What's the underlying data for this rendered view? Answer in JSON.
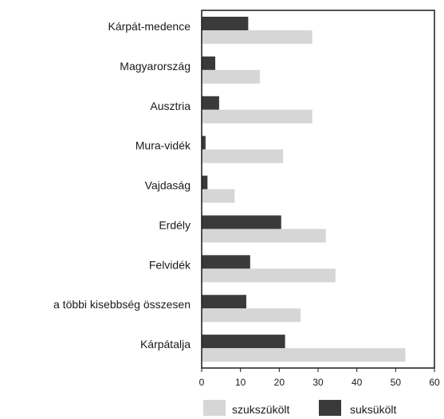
{
  "chart_data": {
    "type": "bar",
    "orientation": "horizontal",
    "categories": [
      "Kárpát-medence",
      "Magyarország",
      "Ausztria",
      "Mura-vidék",
      "Vajdaság",
      "Erdély",
      "Felvidék",
      "a többi kisebbség összesen",
      "Kárpátalja"
    ],
    "series": [
      {
        "name": "suksükölt",
        "color": "#3a3a3a",
        "values": [
          12,
          3.5,
          4.5,
          1,
          1.5,
          20.5,
          12.5,
          11.5,
          21.5
        ]
      },
      {
        "name": "szukszükölt",
        "color": "#d6d6d6",
        "values": [
          28.5,
          15,
          28.5,
          21,
          8.5,
          32,
          34.5,
          25.5,
          52.5
        ]
      }
    ],
    "xlim": [
      0,
      60
    ],
    "xticks": [
      0,
      10,
      20,
      30,
      40,
      50,
      60
    ],
    "legend": {
      "position": "bottom",
      "items": [
        {
          "label": "szukszükölt",
          "color": "#d6d6d6"
        },
        {
          "label": "suksükölt",
          "color": "#3a3a3a"
        }
      ]
    },
    "grid": false
  }
}
